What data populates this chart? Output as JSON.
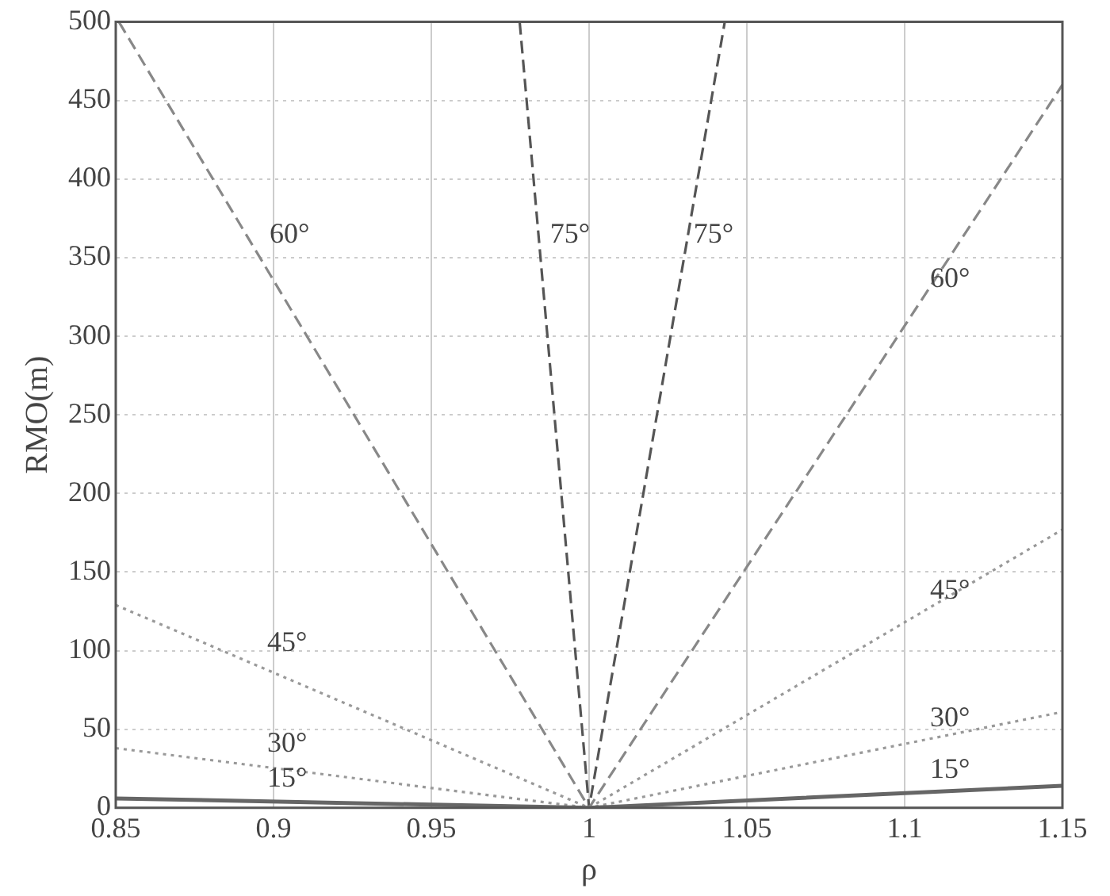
{
  "chart_data": {
    "type": "line",
    "xlabel": "ρ",
    "ylabel": "RMO(m)",
    "xlim": [
      0.85,
      1.15
    ],
    "xticks": [
      0.85,
      0.9,
      0.95,
      1,
      1.05,
      1.1,
      1.15
    ],
    "ylim": [
      0,
      500
    ],
    "yticks": [
      0,
      50,
      100,
      150,
      200,
      250,
      300,
      350,
      400,
      450,
      500
    ],
    "grid": true,
    "legend": false,
    "marker": "none",
    "series": [
      {
        "name": "15°",
        "color": "#666666",
        "line_style": "solid",
        "x": [
          0.85,
          1,
          1.15
        ],
        "values": [
          6,
          0,
          14
        ]
      },
      {
        "name": "30°",
        "color": "#999999",
        "line_style": "dotted",
        "x": [
          0.85,
          1,
          1.15
        ],
        "values": [
          38,
          0,
          61
        ]
      },
      {
        "name": "45°",
        "color": "#999999",
        "line_style": "dotted",
        "x": [
          0.85,
          1,
          1.15
        ],
        "values": [
          129,
          0,
          177
        ]
      },
      {
        "name": "60°",
        "color": "#888888",
        "line_style": "dashed",
        "x": [
          0.851,
          1,
          1.15
        ],
        "values": [
          500,
          0,
          460
        ]
      },
      {
        "name": "75°",
        "color": "#555555",
        "line_style": "dashed",
        "x": [
          0.978,
          1,
          1.043
        ],
        "values": [
          500,
          0,
          500
        ]
      }
    ]
  }
}
